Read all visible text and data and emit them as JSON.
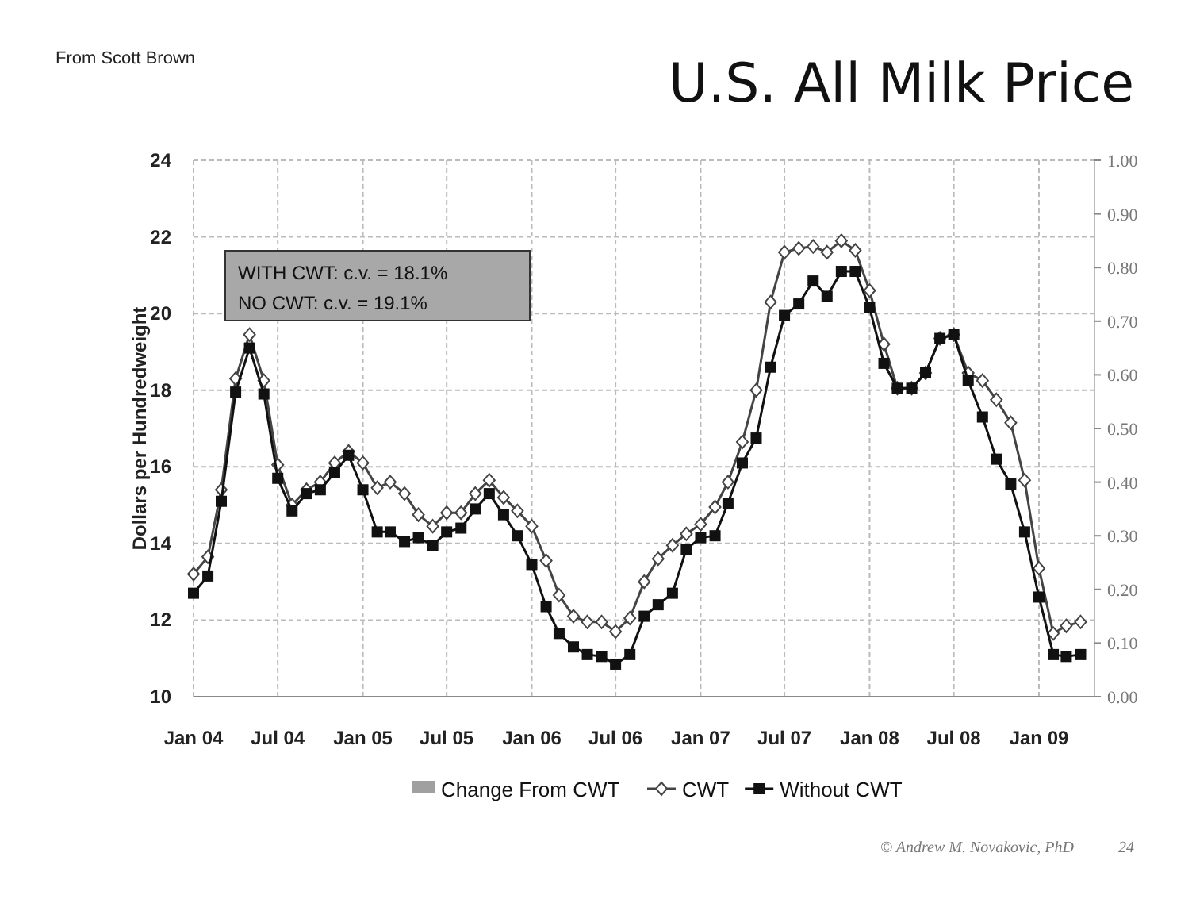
{
  "chart_data": {
    "type": "line",
    "title": "U.S. All Milk Price",
    "ylabel": "Dollars per Hundredweight",
    "x": [
      "2004-01",
      "2004-02",
      "2004-03",
      "2004-04",
      "2004-05",
      "2004-06",
      "2004-07",
      "2004-08",
      "2004-09",
      "2004-10",
      "2004-11",
      "2004-12",
      "2005-01",
      "2005-02",
      "2005-03",
      "2005-04",
      "2005-05",
      "2005-06",
      "2005-07",
      "2005-08",
      "2005-09",
      "2005-10",
      "2005-11",
      "2005-12",
      "2006-01",
      "2006-02",
      "2006-03",
      "2006-04",
      "2006-05",
      "2006-06",
      "2006-07",
      "2006-08",
      "2006-09",
      "2006-10",
      "2006-11",
      "2006-12",
      "2007-01",
      "2007-02",
      "2007-03",
      "2007-04",
      "2007-05",
      "2007-06",
      "2007-07",
      "2007-08",
      "2007-09",
      "2007-10",
      "2007-11",
      "2007-12",
      "2008-01",
      "2008-02",
      "2008-03",
      "2008-04",
      "2008-05",
      "2008-06",
      "2008-07",
      "2008-08",
      "2008-09",
      "2008-10",
      "2008-11",
      "2008-12",
      "2009-01",
      "2009-02",
      "2009-03",
      "2009-04"
    ],
    "series": [
      {
        "name": "Change From CWT",
        "type": "bar",
        "color": "#a0a0a0",
        "values": [
          null,
          null,
          null,
          null,
          null,
          null,
          null,
          null,
          null,
          null,
          null,
          null,
          null,
          null,
          null,
          null,
          null,
          null,
          null,
          null,
          null,
          null,
          null,
          null,
          null,
          null,
          null,
          null,
          null,
          null,
          null,
          null,
          null,
          null,
          null,
          null,
          null,
          null,
          null,
          null,
          null,
          null,
          null,
          null,
          null,
          null,
          null,
          null,
          null,
          null,
          null,
          null,
          null,
          null,
          null,
          null,
          null,
          null,
          null,
          null,
          null,
          null,
          null,
          null
        ]
      },
      {
        "name": "CWT",
        "color": "#444444",
        "marker": "diamond",
        "values": [
          13.2,
          13.65,
          15.4,
          18.3,
          19.45,
          18.25,
          16.05,
          15.0,
          15.4,
          15.6,
          16.1,
          16.4,
          16.1,
          15.45,
          15.6,
          15.3,
          14.75,
          14.45,
          14.8,
          14.8,
          15.3,
          15.65,
          15.2,
          14.85,
          14.45,
          13.55,
          12.65,
          12.1,
          11.95,
          11.95,
          11.7,
          12.05,
          13.0,
          13.6,
          13.95,
          14.25,
          14.5,
          14.95,
          15.6,
          16.65,
          18.0,
          20.3,
          21.6,
          21.7,
          21.75,
          21.6,
          21.9,
          21.65,
          20.6,
          19.2,
          18.05,
          18.05,
          18.45,
          19.35,
          19.45,
          18.45,
          18.25,
          17.75,
          17.15,
          15.65,
          13.35,
          11.65,
          11.85,
          11.95
        ]
      },
      {
        "name": "Without CWT",
        "color": "#111111",
        "marker": "square",
        "values": [
          12.7,
          13.15,
          15.1,
          17.95,
          19.1,
          17.9,
          15.7,
          14.85,
          15.3,
          15.4,
          15.85,
          16.3,
          15.4,
          14.3,
          14.3,
          14.05,
          14.15,
          13.95,
          14.3,
          14.4,
          14.9,
          15.3,
          14.75,
          14.2,
          13.45,
          12.35,
          11.65,
          11.3,
          11.1,
          11.05,
          10.85,
          11.1,
          12.1,
          12.4,
          12.7,
          13.85,
          14.15,
          14.2,
          15.05,
          16.1,
          16.75,
          18.6,
          19.95,
          20.25,
          20.85,
          20.45,
          21.1,
          21.1,
          20.15,
          18.7,
          18.05,
          18.05,
          18.45,
          19.35,
          19.45,
          18.25,
          17.3,
          16.2,
          15.55,
          14.3,
          12.6,
          11.1,
          11.05,
          11.1
        ]
      }
    ],
    "xlim": [
      "2004-01",
      "2009-05"
    ],
    "xticks": [
      {
        "value": "2004-01",
        "label": "Jan 04"
      },
      {
        "value": "2004-07",
        "label": "Jul 04"
      },
      {
        "value": "2005-01",
        "label": "Jan 05"
      },
      {
        "value": "2005-07",
        "label": "Jul 05"
      },
      {
        "value": "2006-01",
        "label": "Jan 06"
      },
      {
        "value": "2006-07",
        "label": "Jul 06"
      },
      {
        "value": "2007-01",
        "label": "Jan 07"
      },
      {
        "value": "2007-07",
        "label": "Jul 07"
      },
      {
        "value": "2008-01",
        "label": "Jan 08"
      },
      {
        "value": "2008-07",
        "label": "Jul 08"
      },
      {
        "value": "2009-01",
        "label": "Jan 09"
      }
    ],
    "ylim": [
      10,
      24
    ],
    "yticks": [
      10,
      12,
      14,
      16,
      18,
      20,
      22,
      24
    ],
    "y2lim": [
      0,
      1
    ],
    "y2ticks": [
      {
        "value": 0,
        "label": "0.00"
      },
      {
        "value": 0.1,
        "label": "0.10"
      },
      {
        "value": 0.2,
        "label": "0.20"
      },
      {
        "value": 0.3,
        "label": "0.30"
      },
      {
        "value": 0.4,
        "label": "0.40"
      },
      {
        "value": 0.5,
        "label": "0.50"
      },
      {
        "value": 0.6,
        "label": "0.60"
      },
      {
        "value": 0.7,
        "label": "0.70"
      },
      {
        "value": 0.8,
        "label": "0.80"
      },
      {
        "value": 0.9,
        "label": "0.90"
      },
      {
        "value": 1,
        "label": "1.00"
      }
    ],
    "grid": true,
    "legend": "bottom",
    "annotations": [
      "WITH CWT:  c.v.  = 18.1%",
      "NO CWT:  c.v. = 19.1%",
      "From Scott Brown",
      "© Andrew M. Novakovic, PhD",
      "24"
    ]
  }
}
